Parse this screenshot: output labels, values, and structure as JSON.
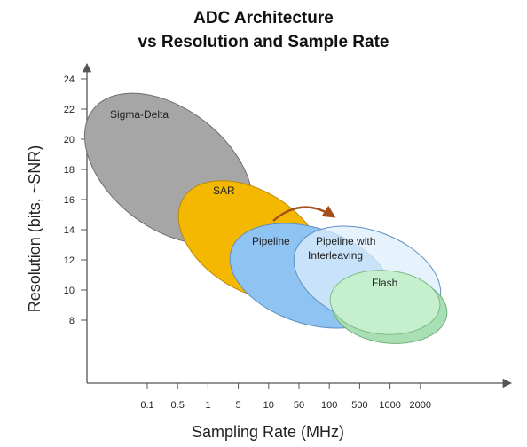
{
  "title": {
    "line1": "ADC Architecture",
    "line2": "vs Resolution and Sample Rate"
  },
  "chart_data": {
    "type": "diagram",
    "xlabel": "Sampling Rate (MHz)",
    "ylabel": "Resolution (bits, ~SNR)",
    "x_ticks": [
      "0.1",
      "0.5",
      "1",
      "5",
      "10",
      "50",
      "100",
      "500",
      "1000",
      "2000"
    ],
    "y_ticks": [
      8,
      10,
      12,
      14,
      16,
      18,
      20,
      22,
      24
    ],
    "ylim": [
      0,
      25
    ],
    "regions": [
      {
        "name": "Sigma-Delta",
        "label": "Sigma-Delta",
        "x_range": [
          "<0.1",
          "1"
        ],
        "y_range": [
          8,
          24
        ],
        "color": "#a6a6a6"
      },
      {
        "name": "SAR",
        "label": "SAR",
        "x_range": [
          "1",
          "10"
        ],
        "y_range": [
          8,
          18
        ],
        "color": "#f5b800"
      },
      {
        "name": "Pipeline",
        "label": "Pipeline",
        "x_range": [
          "5",
          "100"
        ],
        "y_range": [
          7,
          15
        ],
        "color": "#8fc3f2"
      },
      {
        "name": "Pipeline with Interleaving",
        "label": "Pipeline with\nInterleaving",
        "x_range": [
          "50",
          "1000"
        ],
        "y_range": [
          6.5,
          14.5
        ],
        "color": "#dceefb"
      },
      {
        "name": "Flash",
        "label": "Flash",
        "x_range": [
          "100",
          "2000"
        ],
        "y_range": [
          6.5,
          11.5
        ],
        "color": "#bdebc6"
      }
    ],
    "annotation": "arrow from Pipeline to Pipeline with Interleaving"
  }
}
